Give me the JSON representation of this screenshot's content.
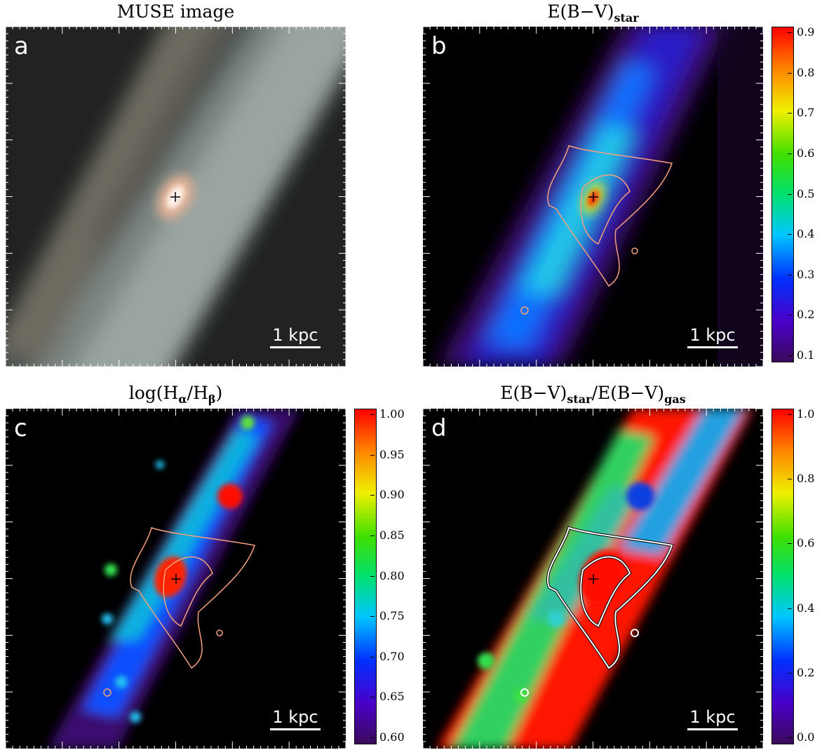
{
  "panels": {
    "a": {
      "letter": "a",
      "title_main": "MUSE image",
      "scale_label": "1 kpc"
    },
    "b": {
      "letter": "b",
      "title_main": "E(B−V)",
      "title_sub": "star",
      "scale_label": "1 kpc",
      "colorbar": [
        "0.9",
        "0.8",
        "0.7",
        "0.6",
        "0.5",
        "0.4",
        "0.3",
        "0.2",
        "0.1"
      ]
    },
    "c": {
      "letter": "c",
      "title_pre": "log(H",
      "title_sub1": "α",
      "title_mid": "/H",
      "title_sub2": "β",
      "title_post": ")",
      "scale_label": "1 kpc",
      "colorbar": [
        "1.00",
        "0.95",
        "0.90",
        "0.85",
        "0.80",
        "0.75",
        "0.70",
        "0.65",
        "0.60"
      ]
    },
    "d": {
      "letter": "d",
      "title_pre": "E(B−V)",
      "title_sub1": "star",
      "title_mid": "/E(B−V)",
      "title_sub2": "gas",
      "scale_label": "1 kpc",
      "colorbar": [
        "1.0",
        "0.8",
        "0.6",
        "0.4",
        "0.2",
        "0.0"
      ]
    }
  },
  "colors": {
    "contour_orange": "#f4a07a",
    "contour_white": "#ffffff"
  }
}
